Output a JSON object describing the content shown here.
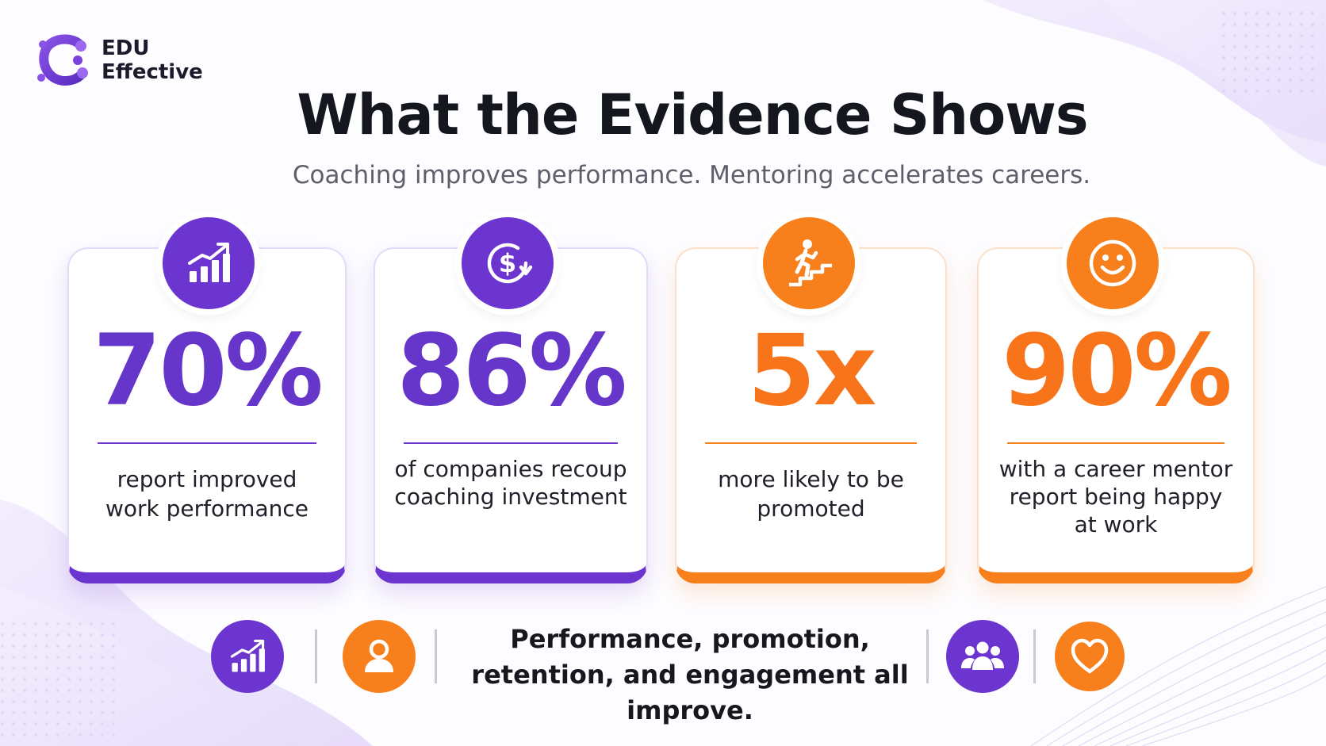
{
  "brand": {
    "name_line1": "EDU",
    "name_line2": "Effective"
  },
  "header": {
    "title": "What the Evidence Shows",
    "subtitle": "Coaching improves performance. Mentoring accelerates careers."
  },
  "colors": {
    "purple": "#6d35cf",
    "orange": "#f7801c",
    "text_dark": "#17181f",
    "text_muted": "#5d5f6b"
  },
  "stats": [
    {
      "value": "70%",
      "description": "report improved work performance",
      "icon": "growth-chart-icon",
      "accent": "purple"
    },
    {
      "value": "86%",
      "description": "of companies recoup coaching investment",
      "icon": "dollar-cycle-icon",
      "accent": "purple"
    },
    {
      "value": "5x",
      "description": "more likely to be promoted",
      "icon": "climbing-stairs-icon",
      "accent": "orange"
    },
    {
      "value": "90%",
      "description": "with a career mentor report being happy at work",
      "icon": "smiley-face-icon",
      "accent": "orange"
    }
  ],
  "footer": {
    "message": "Performance, promotion, retention, and engagement all improve.",
    "icons": [
      "growth-chart-icon",
      "person-icon",
      "group-icon",
      "heart-icon"
    ]
  }
}
